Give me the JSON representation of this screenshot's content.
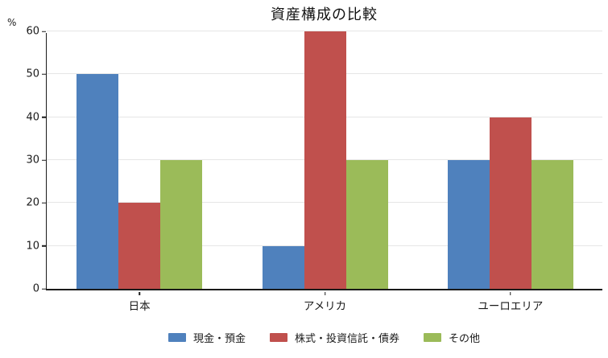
{
  "chart_data": {
    "type": "bar",
    "title": "資産構成の比較",
    "ylabel_unit": "%",
    "categories": [
      "日本",
      "アメリカ",
      "ユーロエリア"
    ],
    "series": [
      {
        "name": "現金・預金",
        "color": "#4F81BD",
        "values": [
          50,
          10,
          30
        ]
      },
      {
        "name": "株式・投資信託・債券",
        "color": "#C0504D",
        "values": [
          20,
          60,
          40
        ]
      },
      {
        "name": "その他",
        "color": "#9BBB59",
        "values": [
          30,
          30,
          30
        ]
      }
    ],
    "yaxis": {
      "min": 0,
      "max": 60,
      "ticks": [
        0,
        10,
        20,
        30,
        40,
        50,
        60
      ]
    },
    "grid": true,
    "legend_position": "bottom-center",
    "colors": {
      "axis": "#1a1a1a",
      "gridline": "#e6e6e6",
      "title_text": "#111111"
    }
  }
}
